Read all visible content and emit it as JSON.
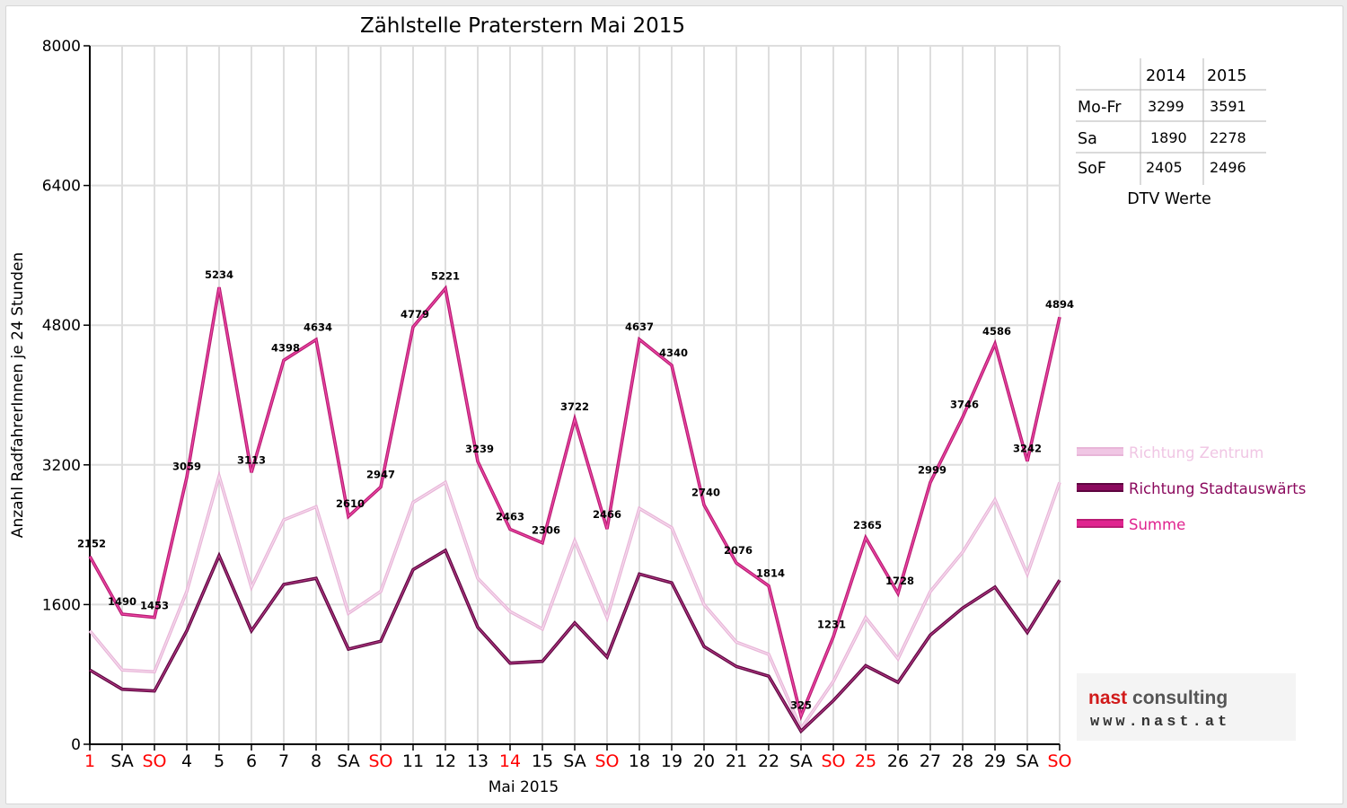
{
  "colors": {
    "zentrum": "#f0c6e4",
    "stadtauswaerts": "#8b0a5e",
    "summe": "#e0248f",
    "red_label": "#ff0000",
    "logo_red": "#d11a1a",
    "logo_gray": "#555555"
  },
  "chart_data": {
    "type": "line",
    "title": "Zählstelle Praterstern Mai 2015",
    "xlabel": "Mai 2015",
    "ylabel": "Anzahl RadfahrerInnen je 24 Stunden",
    "ylim": [
      0,
      8000
    ],
    "yticks": [
      "0",
      "1600",
      "3200",
      "4800",
      "6400",
      "8000"
    ],
    "grid": true,
    "legend_position": "right",
    "categories": [
      "1",
      "SA",
      "SO",
      "4",
      "5",
      "6",
      "7",
      "8",
      "SA",
      "SO",
      "11",
      "12",
      "13",
      "14",
      "15",
      "SA",
      "SO",
      "18",
      "19",
      "20",
      "21",
      "22",
      "SA",
      "SO",
      "25",
      "26",
      "27",
      "28",
      "29",
      "SA",
      "SO"
    ],
    "red_categories": [
      0,
      2,
      9,
      13,
      16,
      23,
      24,
      30
    ],
    "series": [
      {
        "name": "Richtung Zentrum",
        "color_key": "zentrum",
        "values": [
          1300,
          850,
          830,
          1750,
          3070,
          1800,
          2570,
          2720,
          1500,
          1750,
          2770,
          3000,
          1900,
          1520,
          1320,
          2330,
          1450,
          2700,
          2480,
          1600,
          1170,
          1030,
          180,
          720,
          1450,
          980,
          1750,
          2200,
          2800,
          1950,
          3000
        ]
      },
      {
        "name": "Richtung Stadtauswärts",
        "color_key": "stadtauswaerts",
        "values": [
          850,
          630,
          610,
          1300,
          2160,
          1300,
          1830,
          1900,
          1090,
          1180,
          2000,
          2220,
          1340,
          930,
          950,
          1390,
          1000,
          1950,
          1850,
          1120,
          890,
          780,
          150,
          500,
          900,
          710,
          1250,
          1560,
          1800,
          1280,
          1880
        ]
      },
      {
        "name": "Summe",
        "color_key": "summe",
        "values": [
          2152,
          1490,
          1453,
          3059,
          5234,
          3113,
          4398,
          4634,
          2610,
          2947,
          4779,
          5221,
          3239,
          2463,
          2306,
          3722,
          2466,
          4637,
          4340,
          2740,
          2076,
          1814,
          325,
          1231,
          2365,
          1728,
          2999,
          3746,
          4586,
          3242,
          4894
        ],
        "labels": [
          "2152",
          "1490",
          "1453",
          "3059",
          "5234",
          "3113",
          "4398",
          "4634",
          "2610",
          "2947",
          "4779",
          "5221",
          "3239",
          "2463",
          "2306",
          "3722",
          "2466",
          "4637",
          "4340",
          "2740",
          "2076",
          "1814",
          "325",
          "1231",
          "2365",
          "1728",
          "2999",
          "3746",
          "4586",
          "3242",
          "4894"
        ]
      }
    ]
  },
  "dtv_table": {
    "columns": [
      "",
      "2014",
      "2015"
    ],
    "rows": [
      [
        "Mo-Fr",
        "3299",
        "3591"
      ],
      [
        "Sa",
        "1890",
        "2278"
      ],
      [
        "SoF",
        "2405",
        "2496"
      ]
    ],
    "caption": "DTV Werte"
  },
  "logo": {
    "word1": "nast",
    "word2": "consulting",
    "url": "www.nast.at"
  }
}
